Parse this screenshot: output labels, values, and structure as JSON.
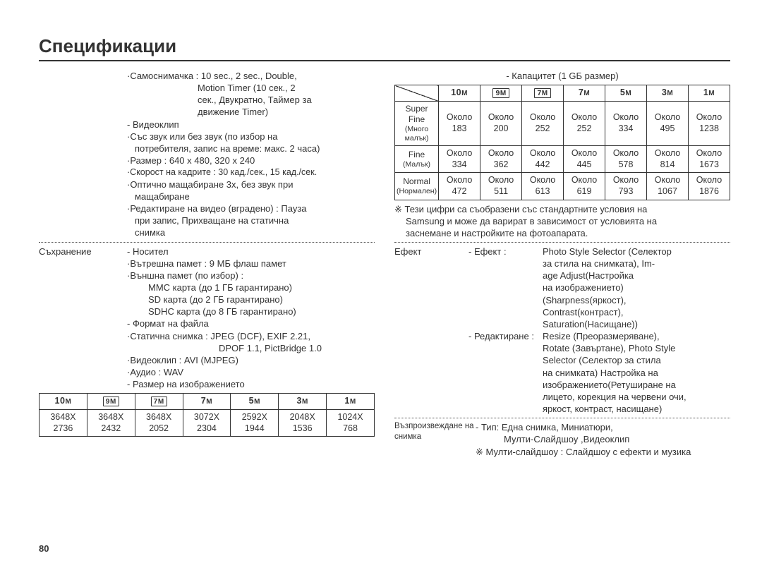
{
  "page_number": "80",
  "title": "Спецификации",
  "left": {
    "shoot": {
      "selftimer_l1": "·Самоснимачка : 10 sec., 2 sec., Double,",
      "selftimer_l2": "Motion Timer (10 сек., 2",
      "selftimer_l3": "сек., Двукратно, Таймер за",
      "selftimer_l4": "движение Timer)",
      "video_head": "Видеоклип",
      "video_l1": "·Със звук или без звук (по избор на",
      "video_l2": "потребителя, запис на време: макс. 2 часа)",
      "video_l3": "·Размер : 640 x 480, 320 x 240",
      "video_l4": "·Скорост на кадрите : 30 кад./сек., 15 кад./сек.",
      "video_l5": "·Оптично мащабиране 3x, без звук при",
      "video_l6": "мащабиране",
      "video_l7": "·Редактиране на видео (вградено) : Пауза",
      "video_l8": "при запис, Прихващане на статична",
      "video_l9": "снимка"
    },
    "storage": {
      "label": "Съхранение",
      "media_head": "Носител",
      "media_l1": "·Вътрешна памет : 9 МБ флаш памет",
      "media_l2": "·Външна памет (по избор) :",
      "media_l3": "MMC карта (до 1 ГБ гарантирано)",
      "media_l4": "SD карта (до 2 ГБ гарантирано)",
      "media_l5": "SDHC карта (до 8 ГБ гарантирано)",
      "format_head": "Формат на файла",
      "format_l1": "·Статична снимка : JPEG (DCF), EXIF 2.21,",
      "format_l2": "DPOF 1.1, PictBridge 1.0",
      "format_l3": "·Видеоклип : AVI (MJPEG)",
      "format_l4": "·Аудио : WAV",
      "size_head": "Размер на изображението"
    },
    "res_table": {
      "headers": [
        "10",
        "9",
        "7",
        "7",
        "5",
        "3",
        "1"
      ],
      "header_boxed": [
        false,
        true,
        true,
        false,
        false,
        false,
        false
      ],
      "rows": [
        [
          "3648X 2736",
          "3648X 2432",
          "3648X 2052",
          "3072X 2304",
          "2592X 1944",
          "2048X 1536",
          "1024X 768"
        ]
      ]
    }
  },
  "right": {
    "capacity_head": "Капацитет (1 GБ размер)",
    "cap_table": {
      "col_headers": [
        "10",
        "9",
        "7",
        "7",
        "5",
        "3",
        "1"
      ],
      "col_boxed": [
        false,
        true,
        true,
        false,
        false,
        false,
        false
      ],
      "row_headers": [
        {
          "a": "Super Fine",
          "b": "(Много малък)"
        },
        {
          "a": "Fine",
          "b": "(Малък)"
        },
        {
          "a": "Normal",
          "b": "(Нормален)"
        }
      ],
      "cells": [
        [
          "Около 183",
          "Около 200",
          "Около 252",
          "Около 252",
          "Около 334",
          "Около 495",
          "Около 1238"
        ],
        [
          "Около 334",
          "Около 362",
          "Около 442",
          "Около 445",
          "Около 578",
          "Около 814",
          "Около 1673"
        ],
        [
          "Около 472",
          "Около 511",
          "Около 613",
          "Около 619",
          "Около 793",
          "Около 1067",
          "Около 1876"
        ]
      ]
    },
    "note_l1": "※ Тези цифри са съобразени със стандартните условия на",
    "note_l2": "Samsung и може да варират в зависимост от условията на",
    "note_l3": "заснемане и настройките на фотоапарата.",
    "effect": {
      "label": "Ефект",
      "eff_head": "- Ефект",
      "eff_sep": " : ",
      "eff_l1": "Photo Style Selector (Селектор",
      "eff_l2": "за стила на снимката), Im-",
      "eff_l3": "age Adjust(Настройка",
      "eff_l4": "на изображението)",
      "eff_l5": "(Sharpness(яркост),",
      "eff_l6": "Contrast(контраст),",
      "eff_l7": "Saturation(Насищане))",
      "edit_head": "- Редактиране : ",
      "edit_l1": "Resize (Преоразмеряване),",
      "edit_l2": "Rotate (Завъртане), Photo Style",
      "edit_l3": "Selector (Селектор за стила",
      "edit_l4": "на снимката) Настройка на",
      "edit_l5": "изображението(Ретуширане на",
      "edit_l6": "лицето, корекция на червени очи,",
      "edit_l7": "яркост, контраст, насищане)"
    },
    "playback": {
      "label": "Възпроизвеждане на снимка",
      "l1": "- Тип: Една снимка, Миниатюри,",
      "l2": "Мулти-Слайдшоу ,Видеоклип",
      "l3": "※ Мулти-слайдшоу : Слайдшоу с ефекти и музика"
    }
  }
}
